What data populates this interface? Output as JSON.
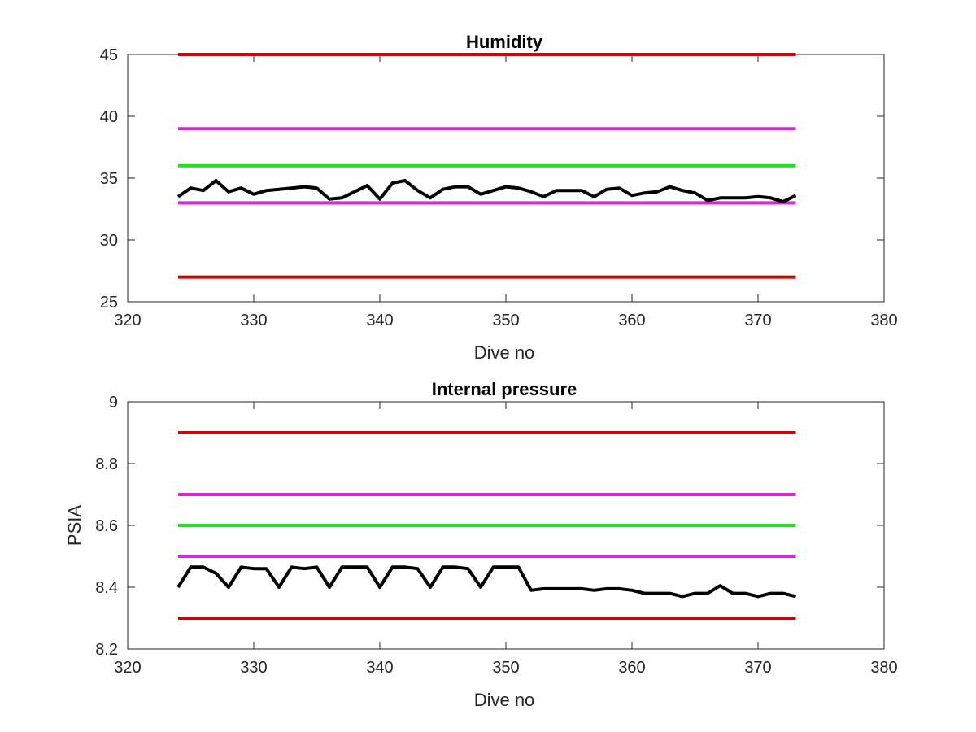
{
  "chart_data": [
    {
      "type": "line",
      "title": "Humidity",
      "xlabel": "Dive no",
      "ylabel": "",
      "xlim": [
        320,
        380
      ],
      "ylim": [
        25,
        45
      ],
      "xticks": [
        "320",
        "330",
        "340",
        "350",
        "360",
        "370",
        "380"
      ],
      "yticks": [
        "25",
        "30",
        "35",
        "40",
        "45"
      ],
      "grid": false,
      "legend": "none",
      "thresholds": [
        {
          "y": 45,
          "color": "#d40000"
        },
        {
          "y": 39,
          "color": "#e020e0"
        },
        {
          "y": 36,
          "color": "#20e020"
        },
        {
          "y": 33,
          "color": "#e020e0"
        },
        {
          "y": 27,
          "color": "#d40000"
        }
      ],
      "threshold_x": [
        324,
        373
      ],
      "series": [
        {
          "color": "#000000",
          "x": [
            324,
            325,
            326,
            327,
            328,
            329,
            330,
            331,
            332,
            333,
            334,
            335,
            336,
            337,
            338,
            339,
            340,
            341,
            342,
            343,
            344,
            345,
            346,
            347,
            348,
            349,
            350,
            351,
            352,
            353,
            354,
            355,
            356,
            357,
            358,
            359,
            360,
            361,
            362,
            363,
            364,
            365,
            366,
            367,
            368,
            369,
            370,
            371,
            372,
            373
          ],
          "y": [
            33.5,
            34.2,
            34.0,
            34.8,
            33.9,
            34.2,
            33.7,
            34.0,
            34.1,
            34.2,
            34.3,
            34.2,
            33.3,
            33.4,
            33.9,
            34.4,
            33.3,
            34.6,
            34.8,
            34.0,
            33.4,
            34.1,
            34.3,
            34.3,
            33.7,
            34.0,
            34.3,
            34.2,
            33.9,
            33.5,
            34.0,
            34.0,
            34.0,
            33.5,
            34.1,
            34.2,
            33.6,
            33.8,
            33.9,
            34.3,
            34.0,
            33.8,
            33.2,
            33.4,
            33.4,
            33.4,
            33.5,
            33.4,
            33.1,
            33.6
          ]
        }
      ]
    },
    {
      "type": "line",
      "title": "Internal pressure",
      "xlabel": "Dive no",
      "ylabel": "PSIA",
      "xlim": [
        320,
        380
      ],
      "ylim": [
        8.2,
        9.0
      ],
      "xticks": [
        "320",
        "330",
        "340",
        "350",
        "360",
        "370",
        "380"
      ],
      "yticks": [
        "8.2",
        "8.4",
        "8.6",
        "8.8",
        "9"
      ],
      "grid": false,
      "legend": "none",
      "thresholds": [
        {
          "y": 8.9,
          "color": "#d40000"
        },
        {
          "y": 8.7,
          "color": "#e020e0"
        },
        {
          "y": 8.6,
          "color": "#20e020"
        },
        {
          "y": 8.5,
          "color": "#e020e0"
        },
        {
          "y": 8.3,
          "color": "#d40000"
        }
      ],
      "threshold_x": [
        324,
        373
      ],
      "series": [
        {
          "color": "#000000",
          "x": [
            324,
            325,
            326,
            327,
            328,
            329,
            330,
            331,
            332,
            333,
            334,
            335,
            336,
            337,
            338,
            339,
            340,
            341,
            342,
            343,
            344,
            345,
            346,
            347,
            348,
            349,
            350,
            351,
            352,
            353,
            354,
            355,
            356,
            357,
            358,
            359,
            360,
            361,
            362,
            363,
            364,
            365,
            366,
            367,
            368,
            369,
            370,
            371,
            372,
            373
          ],
          "y": [
            8.4,
            8.465,
            8.465,
            8.445,
            8.4,
            8.465,
            8.46,
            8.46,
            8.4,
            8.465,
            8.46,
            8.465,
            8.4,
            8.465,
            8.465,
            8.465,
            8.4,
            8.465,
            8.465,
            8.46,
            8.4,
            8.465,
            8.465,
            8.46,
            8.4,
            8.465,
            8.465,
            8.465,
            8.39,
            8.395,
            8.395,
            8.395,
            8.395,
            8.39,
            8.395,
            8.395,
            8.39,
            8.38,
            8.38,
            8.38,
            8.37,
            8.38,
            8.38,
            8.405,
            8.38,
            8.38,
            8.37,
            8.38,
            8.38,
            8.37
          ]
        }
      ]
    }
  ]
}
